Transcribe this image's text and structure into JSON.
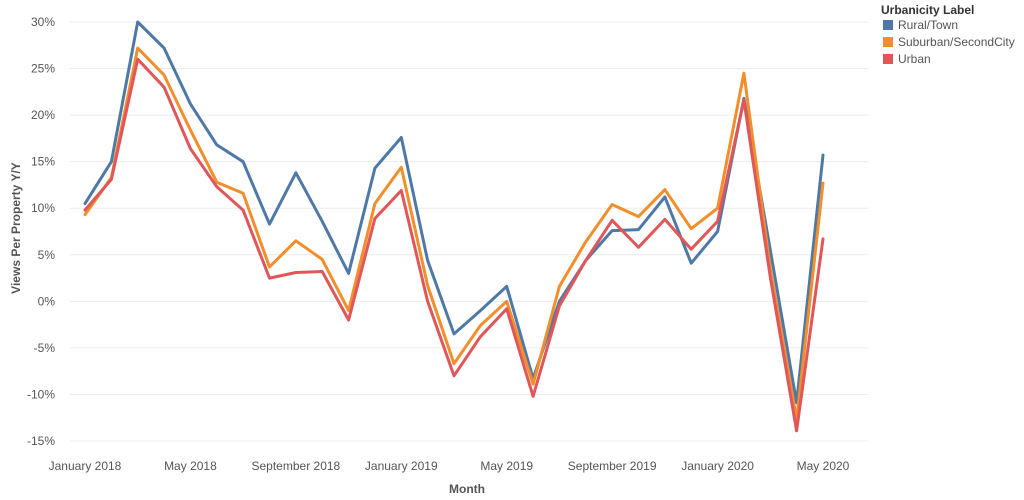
{
  "chart_data": {
    "type": "line",
    "title": "",
    "xlabel": "Month",
    "ylabel": "Views Per Property Y/Y",
    "ylim": [
      -16,
      31
    ],
    "y_ticks": [
      -15,
      -10,
      -5,
      0,
      5,
      10,
      15,
      20,
      25,
      30
    ],
    "y_tick_labels": [
      "-15%",
      "-10%",
      "-5%",
      "0%",
      "5%",
      "10%",
      "15%",
      "20%",
      "25%",
      "30%"
    ],
    "x": [
      "Jan 2018",
      "Feb 2018",
      "Mar 2018",
      "Apr 2018",
      "May 2018",
      "Jun 2018",
      "Jul 2018",
      "Aug 2018",
      "Sep 2018",
      "Oct 2018",
      "Nov 2018",
      "Dec 2018",
      "Jan 2019",
      "Feb 2019",
      "Mar 2019",
      "Apr 2019",
      "May 2019",
      "Jun 2019",
      "Jul 2019",
      "Aug 2019",
      "Sep 2019",
      "Oct 2019",
      "Nov 2019",
      "Dec 2019",
      "Jan 2020",
      "Feb 2020",
      "Mar 2020",
      "Apr 2020",
      "May 2020"
    ],
    "x_tick_labels": [
      {
        "index": 0,
        "label": "January 2018"
      },
      {
        "index": 4,
        "label": "May 2018"
      },
      {
        "index": 8,
        "label": "September 2018"
      },
      {
        "index": 12,
        "label": "January 2019"
      },
      {
        "index": 16,
        "label": "May 2019"
      },
      {
        "index": 20,
        "label": "September 2019"
      },
      {
        "index": 24,
        "label": "January 2020"
      },
      {
        "index": 28,
        "label": "May 2020"
      }
    ],
    "legend_title": "Urbanicity Label",
    "legend_position": "top-right",
    "grid": true,
    "series": [
      {
        "name": "Rural/Town",
        "color": "#4e79a7",
        "values": [
          10.5,
          15,
          30,
          27.2,
          21.2,
          16.8,
          15,
          8.3,
          13.8,
          8.6,
          3,
          14.3,
          17.6,
          4.4,
          -3.5,
          -1,
          1.6,
          -8.3,
          0,
          4.4,
          7.6,
          7.7,
          11.2,
          4.1,
          7.5,
          21.8,
          5.5,
          -10.9,
          15.7
        ]
      },
      {
        "name": "Suburban/SecondCity",
        "color": "#f28e2b",
        "values": [
          9.3,
          13.3,
          27.2,
          24.3,
          18.4,
          12.8,
          11.6,
          3.7,
          6.5,
          4.5,
          -1,
          10.5,
          14.4,
          1.7,
          -6.7,
          -2.6,
          0,
          -8.9,
          1.6,
          6.4,
          10.4,
          9.1,
          12,
          7.8,
          10,
          24.5,
          3.5,
          -12.7,
          12.7
        ]
      },
      {
        "name": "Urban",
        "color": "#e15759",
        "values": [
          9.8,
          13.1,
          26,
          23,
          16.4,
          12.3,
          9.8,
          2.5,
          3.1,
          3.2,
          -2,
          8.9,
          11.9,
          0,
          -8,
          -3.8,
          -0.8,
          -10.2,
          -0.5,
          4.4,
          8.7,
          5.8,
          8.8,
          5.6,
          8.6,
          21.6,
          2.6,
          -13.9,
          6.7
        ]
      }
    ]
  }
}
